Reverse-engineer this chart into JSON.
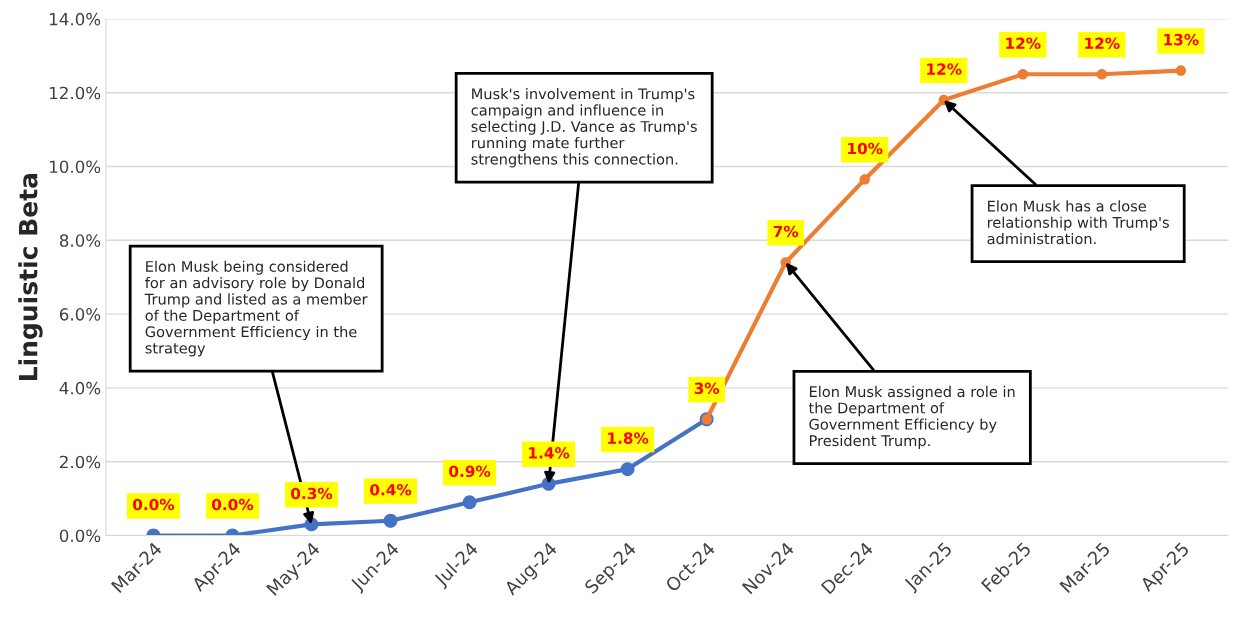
{
  "chart_data": {
    "type": "line",
    "ylabel": "Linguistic Beta",
    "categories": [
      "Mar-24",
      "Apr-24",
      "May-24",
      "Jun-24",
      "Jul-24",
      "Aug-24",
      "Sep-24",
      "Oct-24",
      "Nov-24",
      "Dec-24",
      "Jan-25",
      "Feb-25",
      "Mar-25",
      "Apr-25"
    ],
    "series": [
      {
        "color": "#4472c4",
        "values": [
          0.0,
          0.0,
          0.3,
          0.4,
          0.9,
          1.4,
          1.8,
          3.15,
          null,
          null,
          null,
          null,
          null,
          null
        ],
        "value_labels": [
          "0.0%",
          "0.0%",
          "0.3%",
          "0.4%",
          "0.9%",
          "1.4%",
          "1.8%",
          null,
          null,
          null,
          null,
          null,
          null,
          null
        ]
      },
      {
        "color": "#ed7d31",
        "values": [
          null,
          null,
          null,
          null,
          null,
          null,
          null,
          3.15,
          7.4,
          9.65,
          11.8,
          12.5,
          12.5,
          12.6
        ],
        "value_labels": [
          null,
          null,
          null,
          null,
          null,
          null,
          null,
          "3%",
          "7%",
          "10%",
          "12%",
          "12%",
          "12%",
          "13%"
        ]
      }
    ],
    "ylim": [
      0,
      14
    ],
    "yticks": [
      {
        "value": 0,
        "label": "0.0%"
      },
      {
        "value": 2,
        "label": "2.0%"
      },
      {
        "value": 4,
        "label": "4.0%"
      },
      {
        "value": 6,
        "label": "6.0%"
      },
      {
        "value": 8,
        "label": "8.0%"
      },
      {
        "value": 10,
        "label": "10.0%"
      },
      {
        "value": 12,
        "label": "12.0%"
      },
      {
        "value": 14,
        "label": "14.0%"
      }
    ],
    "grid": "y",
    "legend": false,
    "marker": "circle",
    "line_style": "solid",
    "annotations": [
      {
        "text": "Elon Musk being considered\nfor an advisory role by Donald\nTrump and listed as a member\nof the Department of\nGovernment Efficiency in the\nstrategy",
        "x": "May-24",
        "y": 0.3
      },
      {
        "text": "Musk's involvement in Trump's\ncampaign and influence in\nselecting J.D. Vance as Trump's\nrunning mate further\nstrengthens this connection.",
        "x": "Aug-24",
        "y": 1.4
      },
      {
        "text": "Elon Musk assigned a role in\nthe Department of\nGovernment Efficiency by\nPresident Trump.",
        "x": "Nov-24",
        "y": 7.4
      },
      {
        "text": "Elon Musk has a close\nrelationship with Trump's\nadministration.",
        "x": "Jan-25",
        "y": 11.8
      }
    ]
  }
}
